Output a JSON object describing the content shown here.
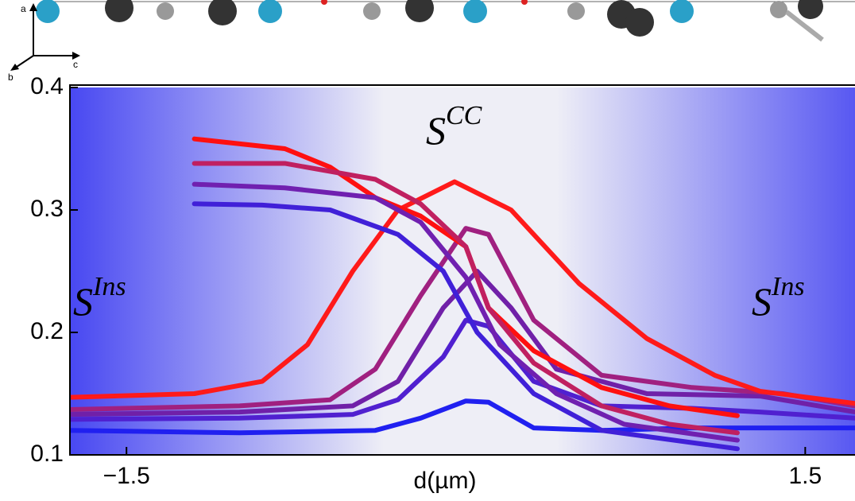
{
  "chart_data": {
    "type": "line",
    "x_label": "d(µm)",
    "xlim": [
      -1.75,
      1.72
    ],
    "xticks": [
      {
        "value": -1.5,
        "label": "−1.5"
      },
      1.5
    ],
    "ylim": [
      0.1,
      0.4
    ],
    "yticks": [
      0.1,
      0.2,
      0.3,
      0.4
    ],
    "axis_labels": [
      "a",
      "b",
      "c"
    ],
    "annotations": [
      {
        "text": "S",
        "sup": "CC"
      },
      {
        "text": "S",
        "sup": "Ins"
      },
      {
        "text": "S",
        "sup": "Ins"
      }
    ],
    "series": [
      {
        "color": "#2020f0",
        "x": [
          -1.75,
          -1.0,
          -0.4,
          -0.2,
          0.0,
          0.1,
          0.3,
          0.6,
          1.0,
          1.72
        ],
        "values": [
          0.12,
          0.118,
          0.12,
          0.13,
          0.144,
          0.143,
          0.122,
          0.12,
          0.122,
          0.122
        ]
      },
      {
        "color": "#5020d0",
        "x": [
          -1.75,
          -1.0,
          -0.5,
          -0.3,
          -0.1,
          0.0,
          0.1,
          0.3,
          0.6,
          1.0,
          1.3,
          1.72
        ],
        "values": [
          0.129,
          0.13,
          0.133,
          0.145,
          0.18,
          0.21,
          0.205,
          0.16,
          0.14,
          0.138,
          0.135,
          0.13
        ]
      },
      {
        "color": "#7020a8",
        "x": [
          -1.75,
          -1.0,
          -0.5,
          -0.3,
          -0.1,
          0.05,
          0.2,
          0.4,
          0.8,
          1.3,
          1.72
        ],
        "values": [
          0.133,
          0.135,
          0.14,
          0.16,
          0.22,
          0.25,
          0.22,
          0.17,
          0.15,
          0.148,
          0.135
        ]
      },
      {
        "color": "#a02080",
        "x": [
          -1.75,
          -1.0,
          -0.6,
          -0.4,
          -0.2,
          0.0,
          0.1,
          0.3,
          0.6,
          1.0,
          1.4,
          1.72
        ],
        "values": [
          0.137,
          0.14,
          0.145,
          0.17,
          0.23,
          0.285,
          0.28,
          0.21,
          0.165,
          0.155,
          0.15,
          0.14
        ]
      },
      {
        "color": "#ff1a1a",
        "x": [
          -1.75,
          -1.2,
          -0.9,
          -0.7,
          -0.5,
          -0.3,
          -0.05,
          0.2,
          0.5,
          0.8,
          1.1,
          1.3,
          1.72
        ],
        "values": [
          0.147,
          0.15,
          0.16,
          0.19,
          0.25,
          0.3,
          0.323,
          0.3,
          0.24,
          0.195,
          0.165,
          0.152,
          0.142
        ]
      },
      {
        "color": "#ff1010",
        "x": [
          -1.2,
          -0.8,
          -0.6,
          -0.4,
          -0.2,
          0.0,
          0.1,
          0.3,
          0.6,
          0.9,
          1.2
        ],
        "values": [
          0.358,
          0.35,
          0.335,
          0.31,
          0.295,
          0.27,
          0.22,
          0.185,
          0.155,
          0.14,
          0.132
        ]
      },
      {
        "color": "#c02060",
        "x": [
          -1.2,
          -0.8,
          -0.4,
          -0.2,
          0.0,
          0.1,
          0.3,
          0.6,
          0.9,
          1.2
        ],
        "values": [
          0.338,
          0.338,
          0.325,
          0.305,
          0.27,
          0.22,
          0.175,
          0.14,
          0.125,
          0.118
        ]
      },
      {
        "color": "#7020b0",
        "x": [
          -1.2,
          -0.8,
          -0.4,
          -0.2,
          0.0,
          0.15,
          0.4,
          0.7,
          1.2
        ],
        "values": [
          0.321,
          0.318,
          0.31,
          0.29,
          0.245,
          0.19,
          0.15,
          0.125,
          0.112
        ]
      },
      {
        "color": "#4020d8",
        "x": [
          -1.2,
          -0.9,
          -0.6,
          -0.3,
          -0.1,
          0.05,
          0.3,
          0.6,
          1.2
        ],
        "values": [
          0.305,
          0.304,
          0.3,
          0.28,
          0.25,
          0.2,
          0.15,
          0.12,
          0.105
        ]
      }
    ]
  }
}
